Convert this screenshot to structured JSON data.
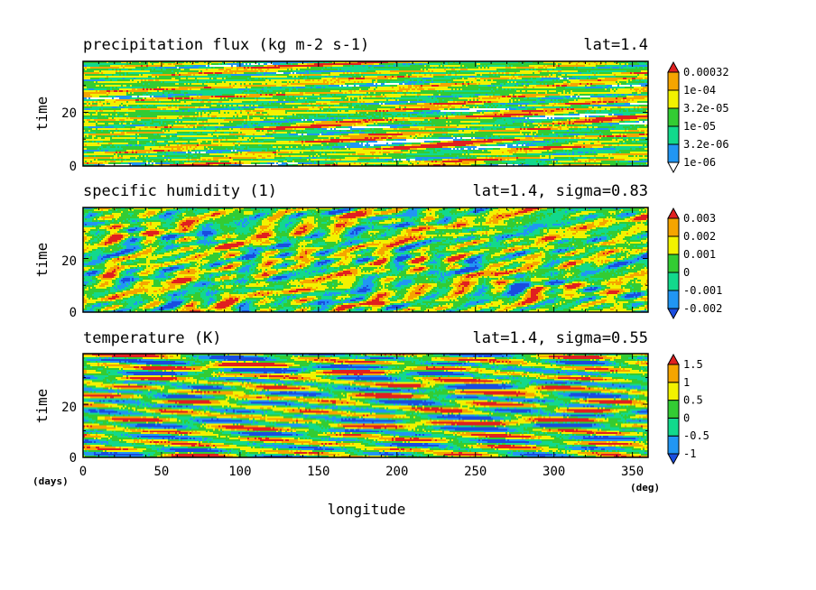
{
  "chart_data": [
    {
      "type": "heatmap",
      "title": "precipitation flux (kg m-2 s-1)",
      "annotation": "lat=1.4",
      "ylabel": "time",
      "y_ticks": [
        "0",
        "20"
      ],
      "ylim": [
        0,
        39
      ],
      "xlim": [
        0,
        360
      ],
      "colorbar": {
        "levels": [
          "1e-06",
          "3.2e-06",
          "1e-05",
          "3.2e-05",
          "1e-04",
          "0.00032"
        ],
        "colors": [
          "#ffffff",
          "#2196f3",
          "#12d98c",
          "#33cc33",
          "#f2f200",
          "#f5a500",
          "#e02020"
        ]
      },
      "pattern": {
        "seed": 11,
        "stretch": 5.5,
        "speed": 3.0,
        "wave": 0.45,
        "bias": 0.12
      }
    },
    {
      "type": "heatmap",
      "title": "specific humidity (1)",
      "annotation": "lat=1.4, sigma=0.83",
      "ylabel": "time",
      "y_ticks": [
        "0",
        "20"
      ],
      "ylim": [
        0,
        39
      ],
      "xlim": [
        0,
        360
      ],
      "colorbar": {
        "levels": [
          "-0.002",
          "-0.001",
          "0",
          "0.001",
          "0.002",
          "0.003"
        ],
        "colors": [
          "#1a4ddf",
          "#2196f3",
          "#12d98c",
          "#33cc33",
          "#f2f200",
          "#f5a500",
          "#e02020"
        ]
      },
      "pattern": {
        "seed": 23,
        "stretch": 1.6,
        "speed": -1.4,
        "wave": 0.35,
        "bias": 0.05
      }
    },
    {
      "type": "heatmap",
      "title": "temperature (K)",
      "annotation": "lat=1.4, sigma=0.55",
      "ylabel": "time",
      "y_ticks": [
        "0",
        "20"
      ],
      "ylim": [
        0,
        39
      ],
      "xlim": [
        0,
        360
      ],
      "x_ticks": [
        "0",
        "50",
        "100",
        "150",
        "200",
        "250",
        "300",
        "350"
      ],
      "xlabel": "longitude",
      "x_unit": "(deg)",
      "y_unit": "(days)",
      "colorbar": {
        "levels": [
          "-1",
          "-0.5",
          "0",
          "0.5",
          "1",
          "1.5"
        ],
        "colors": [
          "#1a4ddf",
          "#2196f3",
          "#12d98c",
          "#33cc33",
          "#f2f200",
          "#f5a500",
          "#e02020"
        ]
      },
      "pattern": {
        "seed": 37,
        "stretch": 7.0,
        "speed": 0.09,
        "wave": 0.9,
        "bias": 0.0
      }
    }
  ]
}
